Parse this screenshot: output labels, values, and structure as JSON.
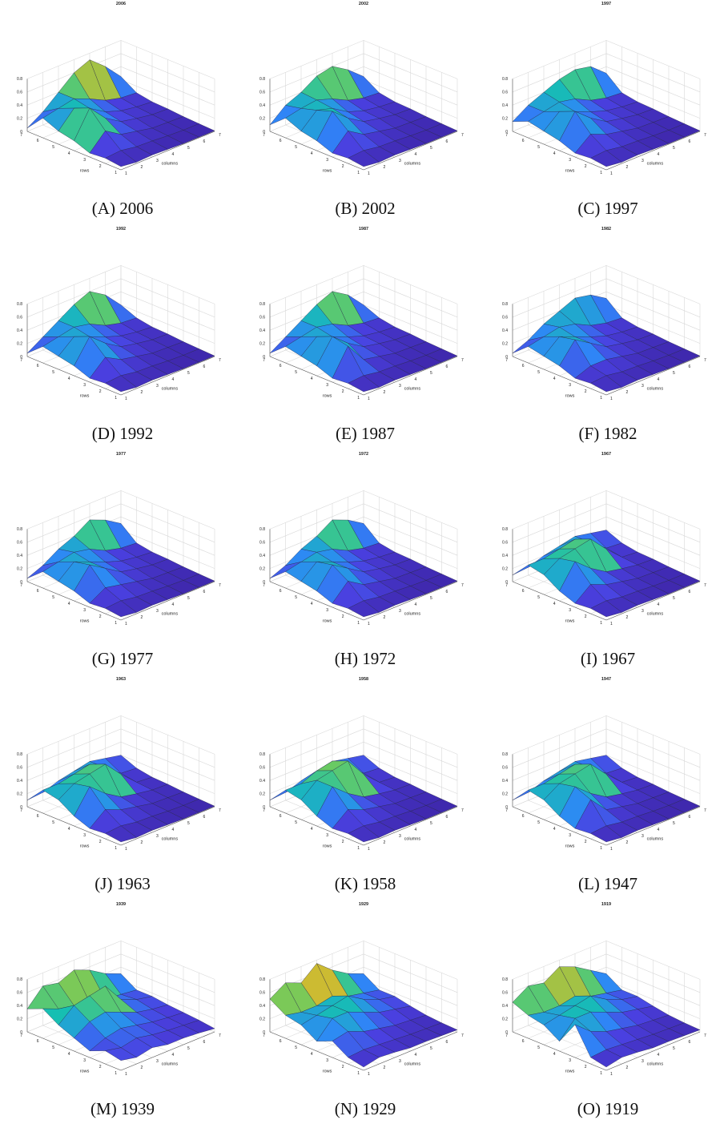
{
  "figure": {
    "panels": [
      {
        "label": "(A)",
        "year": "2006"
      },
      {
        "label": "(B)",
        "year": "2002"
      },
      {
        "label": "(C)",
        "year": "1997"
      },
      {
        "label": "(D)",
        "year": "1992"
      },
      {
        "label": "(E)",
        "year": "1987"
      },
      {
        "label": "(F)",
        "year": "1982"
      },
      {
        "label": "(G)",
        "year": "1977"
      },
      {
        "label": "(H)",
        "year": "1972"
      },
      {
        "label": "(I)",
        "year": "1967"
      },
      {
        "label": "(J)",
        "year": "1963"
      },
      {
        "label": "(K)",
        "year": "1958"
      },
      {
        "label": "(L)",
        "year": "1947"
      },
      {
        "label": "(M)",
        "year": "1939"
      },
      {
        "label": "(N)",
        "year": "1929"
      },
      {
        "label": "(O)",
        "year": "1919"
      }
    ]
  },
  "chart_data": {
    "type": "surface",
    "xlabel": "columns",
    "ylabel": "rows",
    "zlim": [
      0,
      0.8
    ],
    "z_ticks": [
      "0",
      "0.2",
      "0.4",
      "0.6",
      "0.8"
    ],
    "x_ticks": [
      "1",
      "2",
      "3",
      "4",
      "5",
      "6",
      "7"
    ],
    "y_ticks": [
      "1",
      "2",
      "3",
      "4",
      "5",
      "6",
      "7"
    ],
    "grid": true,
    "colormap": [
      "#3e26a8",
      "#4a40e0",
      "#2e87f7",
      "#16bfb2",
      "#6ecb5e",
      "#d9b92c",
      "#f9fb15"
    ],
    "surfaces": [
      {
        "title": "2006",
        "z": [
          [
            0.05,
            0.02,
            0.03,
            0.02,
            0.01,
            0.01,
            0.01
          ],
          [
            0.08,
            0.1,
            0.06,
            0.05,
            0.03,
            0.02,
            0.02
          ],
          [
            0.06,
            0.3,
            0.15,
            0.1,
            0.05,
            0.04,
            0.03
          ],
          [
            0.15,
            0.55,
            0.3,
            0.15,
            0.1,
            0.06,
            0.05
          ],
          [
            0.2,
            0.45,
            0.35,
            0.2,
            0.12,
            0.08,
            0.06
          ],
          [
            0.3,
            0.35,
            0.4,
            0.3,
            0.18,
            0.12,
            0.1
          ],
          [
            0.05,
            0.2,
            0.4,
            0.6,
            0.7,
            0.5,
            0.25
          ]
        ]
      },
      {
        "title": "2002",
        "z": [
          [
            0.05,
            0.02,
            0.03,
            0.02,
            0.01,
            0.01,
            0.01
          ],
          [
            0.08,
            0.1,
            0.06,
            0.05,
            0.03,
            0.02,
            0.02
          ],
          [
            0.06,
            0.3,
            0.15,
            0.1,
            0.05,
            0.04,
            0.03
          ],
          [
            0.15,
            0.5,
            0.3,
            0.15,
            0.1,
            0.06,
            0.05
          ],
          [
            0.2,
            0.42,
            0.35,
            0.2,
            0.12,
            0.08,
            0.06
          ],
          [
            0.3,
            0.35,
            0.38,
            0.3,
            0.18,
            0.12,
            0.1
          ],
          [
            0.1,
            0.3,
            0.4,
            0.55,
            0.6,
            0.45,
            0.25
          ]
        ]
      },
      {
        "title": "1997",
        "z": [
          [
            0.05,
            0.02,
            0.03,
            0.02,
            0.01,
            0.01,
            0.01
          ],
          [
            0.08,
            0.1,
            0.06,
            0.05,
            0.03,
            0.02,
            0.02
          ],
          [
            0.06,
            0.25,
            0.15,
            0.1,
            0.05,
            0.04,
            0.03
          ],
          [
            0.15,
            0.5,
            0.3,
            0.15,
            0.1,
            0.06,
            0.05
          ],
          [
            0.2,
            0.4,
            0.3,
            0.2,
            0.12,
            0.08,
            0.06
          ],
          [
            0.25,
            0.3,
            0.35,
            0.3,
            0.18,
            0.12,
            0.1
          ],
          [
            0.15,
            0.3,
            0.4,
            0.5,
            0.55,
            0.5,
            0.3
          ]
        ]
      },
      {
        "title": "1992",
        "z": [
          [
            0.05,
            0.02,
            0.03,
            0.02,
            0.01,
            0.01,
            0.01
          ],
          [
            0.08,
            0.1,
            0.06,
            0.05,
            0.03,
            0.02,
            0.02
          ],
          [
            0.06,
            0.28,
            0.15,
            0.1,
            0.05,
            0.04,
            0.03
          ],
          [
            0.15,
            0.5,
            0.3,
            0.15,
            0.1,
            0.06,
            0.05
          ],
          [
            0.2,
            0.4,
            0.3,
            0.2,
            0.12,
            0.08,
            0.06
          ],
          [
            0.25,
            0.3,
            0.35,
            0.3,
            0.18,
            0.12,
            0.1
          ],
          [
            0.05,
            0.2,
            0.35,
            0.5,
            0.6,
            0.45,
            0.2
          ]
        ]
      },
      {
        "title": "1987",
        "z": [
          [
            0.05,
            0.02,
            0.03,
            0.02,
            0.01,
            0.01,
            0.01
          ],
          [
            0.08,
            0.1,
            0.06,
            0.05,
            0.03,
            0.02,
            0.02
          ],
          [
            0.06,
            0.45,
            0.15,
            0.1,
            0.05,
            0.04,
            0.03
          ],
          [
            0.15,
            0.5,
            0.3,
            0.15,
            0.1,
            0.06,
            0.05
          ],
          [
            0.2,
            0.4,
            0.3,
            0.2,
            0.12,
            0.08,
            0.06
          ],
          [
            0.25,
            0.3,
            0.35,
            0.3,
            0.18,
            0.12,
            0.1
          ],
          [
            0.05,
            0.2,
            0.35,
            0.5,
            0.6,
            0.45,
            0.2
          ]
        ]
      },
      {
        "title": "1982",
        "z": [
          [
            0.05,
            0.02,
            0.03,
            0.02,
            0.01,
            0.01,
            0.01
          ],
          [
            0.08,
            0.1,
            0.06,
            0.05,
            0.03,
            0.02,
            0.02
          ],
          [
            0.06,
            0.15,
            0.15,
            0.1,
            0.05,
            0.04,
            0.03
          ],
          [
            0.15,
            0.45,
            0.3,
            0.15,
            0.1,
            0.06,
            0.05
          ],
          [
            0.2,
            0.4,
            0.3,
            0.2,
            0.12,
            0.08,
            0.06
          ],
          [
            0.25,
            0.3,
            0.35,
            0.3,
            0.18,
            0.12,
            0.1
          ],
          [
            0.05,
            0.15,
            0.3,
            0.4,
            0.5,
            0.45,
            0.3
          ]
        ]
      },
      {
        "title": "1977",
        "z": [
          [
            0.05,
            0.02,
            0.03,
            0.02,
            0.01,
            0.01,
            0.01
          ],
          [
            0.08,
            0.1,
            0.06,
            0.05,
            0.03,
            0.02,
            0.02
          ],
          [
            0.06,
            0.2,
            0.15,
            0.1,
            0.05,
            0.04,
            0.03
          ],
          [
            0.15,
            0.45,
            0.3,
            0.15,
            0.1,
            0.06,
            0.05
          ],
          [
            0.2,
            0.4,
            0.3,
            0.2,
            0.12,
            0.08,
            0.06
          ],
          [
            0.25,
            0.3,
            0.35,
            0.3,
            0.18,
            0.12,
            0.1
          ],
          [
            0.05,
            0.15,
            0.3,
            0.4,
            0.55,
            0.45,
            0.3
          ]
        ]
      },
      {
        "title": "1972",
        "z": [
          [
            0.05,
            0.02,
            0.03,
            0.02,
            0.01,
            0.01,
            0.01
          ],
          [
            0.08,
            0.1,
            0.06,
            0.05,
            0.03,
            0.02,
            0.02
          ],
          [
            0.06,
            0.3,
            0.15,
            0.1,
            0.05,
            0.04,
            0.03
          ],
          [
            0.15,
            0.45,
            0.3,
            0.15,
            0.1,
            0.06,
            0.05
          ],
          [
            0.2,
            0.4,
            0.3,
            0.2,
            0.12,
            0.08,
            0.06
          ],
          [
            0.25,
            0.3,
            0.35,
            0.3,
            0.18,
            0.12,
            0.1
          ],
          [
            0.05,
            0.15,
            0.3,
            0.4,
            0.55,
            0.45,
            0.3
          ]
        ]
      },
      {
        "title": "1967",
        "z": [
          [
            0.05,
            0.02,
            0.03,
            0.02,
            0.01,
            0.01,
            0.01
          ],
          [
            0.08,
            0.1,
            0.06,
            0.05,
            0.03,
            0.02,
            0.02
          ],
          [
            0.06,
            0.25,
            0.15,
            0.1,
            0.05,
            0.04,
            0.03
          ],
          [
            0.15,
            0.5,
            0.3,
            0.15,
            0.1,
            0.06,
            0.05
          ],
          [
            0.3,
            0.45,
            0.5,
            0.55,
            0.3,
            0.08,
            0.06
          ],
          [
            0.35,
            0.35,
            0.4,
            0.45,
            0.3,
            0.12,
            0.1
          ],
          [
            0.1,
            0.12,
            0.2,
            0.25,
            0.3,
            0.25,
            0.2
          ]
        ]
      },
      {
        "title": "1963",
        "z": [
          [
            0.05,
            0.02,
            0.03,
            0.02,
            0.01,
            0.01,
            0.01
          ],
          [
            0.08,
            0.1,
            0.06,
            0.05,
            0.03,
            0.02,
            0.02
          ],
          [
            0.06,
            0.25,
            0.15,
            0.1,
            0.05,
            0.04,
            0.03
          ],
          [
            0.15,
            0.5,
            0.3,
            0.15,
            0.1,
            0.06,
            0.05
          ],
          [
            0.3,
            0.45,
            0.5,
            0.55,
            0.3,
            0.08,
            0.06
          ],
          [
            0.35,
            0.35,
            0.4,
            0.45,
            0.3,
            0.12,
            0.1
          ],
          [
            0.1,
            0.12,
            0.2,
            0.25,
            0.3,
            0.25,
            0.2
          ]
        ]
      },
      {
        "title": "1958",
        "z": [
          [
            0.05,
            0.02,
            0.03,
            0.02,
            0.01,
            0.01,
            0.01
          ],
          [
            0.08,
            0.1,
            0.06,
            0.05,
            0.03,
            0.02,
            0.02
          ],
          [
            0.06,
            0.25,
            0.15,
            0.1,
            0.05,
            0.04,
            0.03
          ],
          [
            0.15,
            0.5,
            0.3,
            0.15,
            0.1,
            0.06,
            0.05
          ],
          [
            0.3,
            0.5,
            0.55,
            0.6,
            0.3,
            0.08,
            0.06
          ],
          [
            0.35,
            0.35,
            0.45,
            0.5,
            0.3,
            0.12,
            0.1
          ],
          [
            0.1,
            0.12,
            0.2,
            0.25,
            0.3,
            0.25,
            0.2
          ]
        ]
      },
      {
        "title": "1947",
        "z": [
          [
            0.05,
            0.02,
            0.03,
            0.02,
            0.01,
            0.01,
            0.01
          ],
          [
            0.08,
            0.1,
            0.06,
            0.05,
            0.03,
            0.02,
            0.02
          ],
          [
            0.06,
            0.4,
            0.15,
            0.1,
            0.05,
            0.04,
            0.03
          ],
          [
            0.15,
            0.5,
            0.3,
            0.15,
            0.1,
            0.06,
            0.05
          ],
          [
            0.3,
            0.45,
            0.5,
            0.55,
            0.3,
            0.08,
            0.06
          ],
          [
            0.35,
            0.35,
            0.4,
            0.45,
            0.3,
            0.12,
            0.1
          ],
          [
            0.1,
            0.12,
            0.2,
            0.25,
            0.3,
            0.25,
            0.2
          ]
        ]
      },
      {
        "title": "1939",
        "z": [
          [
            0.15,
            0.1,
            0.15,
            0.1,
            0.1,
            0.08,
            0.05
          ],
          [
            0.2,
            0.15,
            0.2,
            0.15,
            0.12,
            0.1,
            0.08
          ],
          [
            0.1,
            0.2,
            0.25,
            0.2,
            0.15,
            0.12,
            0.1
          ],
          [
            0.2,
            0.35,
            0.4,
            0.3,
            0.2,
            0.15,
            0.12
          ],
          [
            0.3,
            0.5,
            0.55,
            0.6,
            0.3,
            0.2,
            0.15
          ],
          [
            0.45,
            0.35,
            0.3,
            0.25,
            0.2,
            0.18,
            0.15
          ],
          [
            0.35,
            0.6,
            0.55,
            0.65,
            0.55,
            0.4,
            0.3
          ]
        ]
      },
      {
        "title": "1929",
        "z": [
          [
            0.05,
            0.1,
            0.08,
            0.05,
            0.05,
            0.04,
            0.03
          ],
          [
            0.1,
            0.12,
            0.1,
            0.08,
            0.06,
            0.05,
            0.04
          ],
          [
            0.25,
            0.3,
            0.2,
            0.15,
            0.1,
            0.08,
            0.06
          ],
          [
            0.15,
            0.4,
            0.4,
            0.3,
            0.2,
            0.15,
            0.1
          ],
          [
            0.3,
            0.35,
            0.4,
            0.45,
            0.3,
            0.2,
            0.15
          ],
          [
            0.35,
            0.3,
            0.3,
            0.35,
            0.25,
            0.2,
            0.15
          ],
          [
            0.5,
            0.65,
            0.55,
            0.75,
            0.55,
            0.4,
            0.3
          ]
        ]
      },
      {
        "title": "1919",
        "z": [
          [
            0.05,
            0.1,
            0.08,
            0.05,
            0.05,
            0.04,
            0.03
          ],
          [
            0.1,
            0.12,
            0.1,
            0.08,
            0.06,
            0.05,
            0.04
          ],
          [
            0.5,
            0.3,
            0.2,
            0.15,
            0.1,
            0.08,
            0.06
          ],
          [
            0.15,
            0.4,
            0.4,
            0.3,
            0.2,
            0.15,
            0.1
          ],
          [
            0.3,
            0.35,
            0.4,
            0.45,
            0.3,
            0.2,
            0.15
          ],
          [
            0.35,
            0.3,
            0.3,
            0.35,
            0.25,
            0.2,
            0.15
          ],
          [
            0.45,
            0.6,
            0.55,
            0.7,
            0.6,
            0.45,
            0.3
          ]
        ]
      }
    ]
  }
}
